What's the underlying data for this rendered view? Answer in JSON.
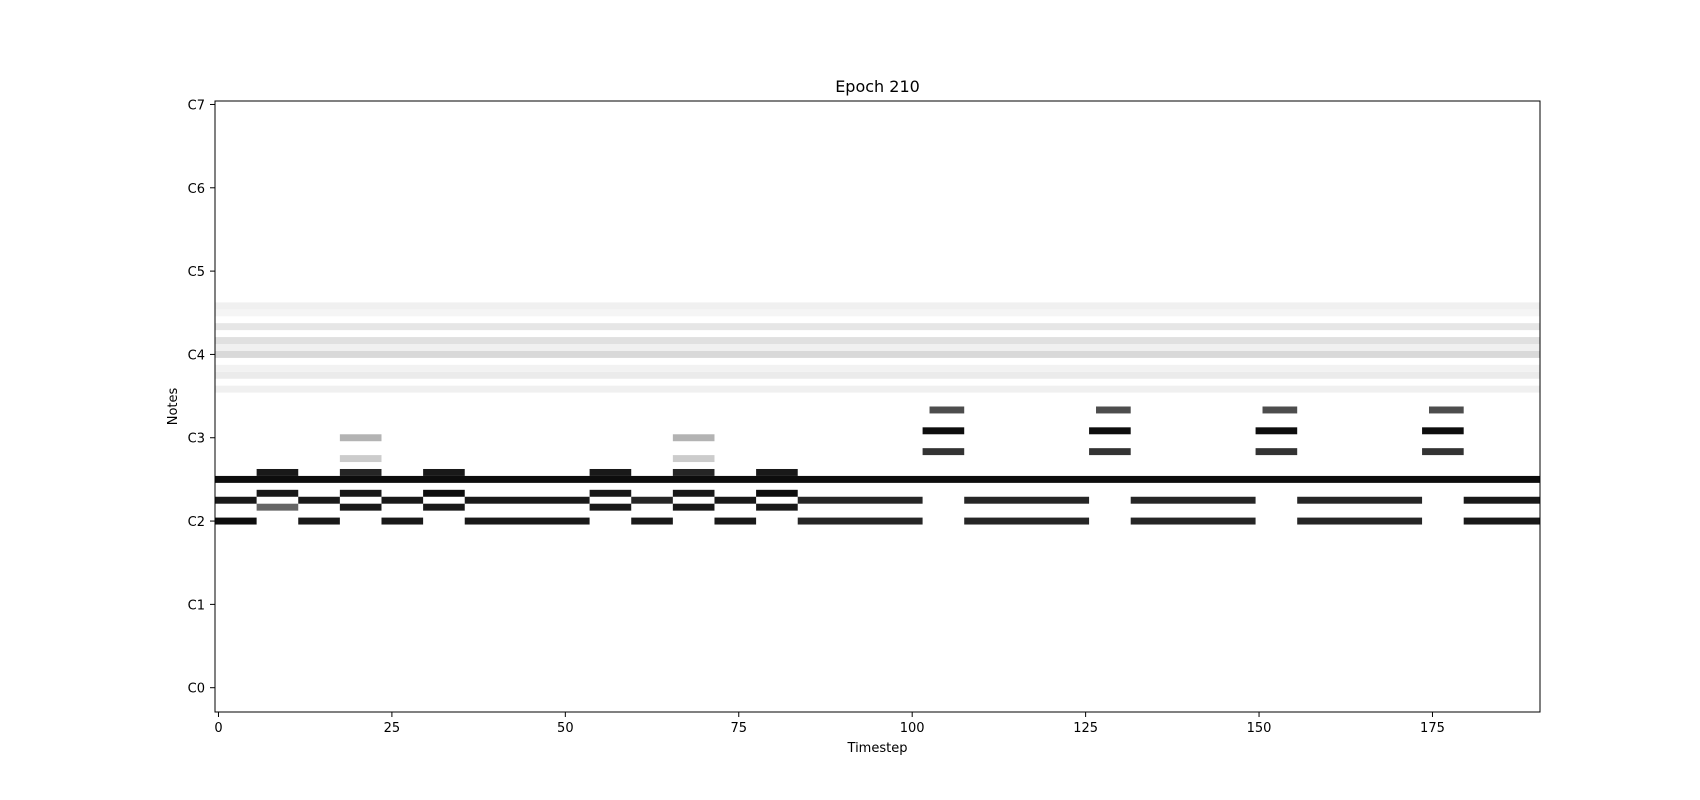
{
  "chart_data": {
    "type": "heatmap",
    "title": "Epoch 210",
    "xlabel": "Timestep",
    "ylabel": "Notes",
    "xlim": [
      -0.5,
      190.5
    ],
    "ylim": [
      -3.5,
      84.5
    ],
    "x_ticks": [
      0,
      25,
      50,
      75,
      100,
      125,
      150,
      175
    ],
    "y_ticks": [
      {
        "value": 0,
        "label": "C0"
      },
      {
        "value": 12,
        "label": "C1"
      },
      {
        "value": 24,
        "label": "C2"
      },
      {
        "value": 36,
        "label": "C3"
      },
      {
        "value": 48,
        "label": "C4"
      },
      {
        "value": 60,
        "label": "C5"
      },
      {
        "value": 72,
        "label": "C6"
      },
      {
        "value": 84,
        "label": "C7"
      }
    ],
    "colormap": "greys",
    "grid": false,
    "notes": [
      {
        "pitch": 24,
        "segments": [
          [
            0,
            5,
            0.95
          ],
          [
            12,
            17,
            0.9
          ],
          [
            24,
            29,
            0.9
          ],
          [
            36,
            53,
            0.9
          ],
          [
            60,
            65,
            0.9
          ],
          [
            72,
            77,
            0.9
          ],
          [
            84,
            101,
            0.85
          ],
          [
            108,
            125,
            0.85
          ],
          [
            132,
            149,
            0.85
          ],
          [
            156,
            173,
            0.85
          ],
          [
            180,
            190,
            0.9
          ]
        ]
      },
      {
        "pitch": 26,
        "segments": [
          [
            6,
            11,
            0.6
          ],
          [
            18,
            23,
            0.9
          ],
          [
            30,
            35,
            0.9
          ],
          [
            54,
            59,
            0.9
          ],
          [
            66,
            71,
            0.9
          ],
          [
            78,
            83,
            0.9
          ]
        ]
      },
      {
        "pitch": 27,
        "segments": [
          [
            0,
            5,
            0.9
          ],
          [
            12,
            17,
            0.9
          ],
          [
            24,
            29,
            0.9
          ],
          [
            36,
            53,
            0.9
          ],
          [
            60,
            65,
            0.85
          ],
          [
            72,
            77,
            0.9
          ],
          [
            84,
            101,
            0.85
          ],
          [
            108,
            125,
            0.85
          ],
          [
            132,
            149,
            0.85
          ],
          [
            156,
            173,
            0.85
          ],
          [
            180,
            190,
            0.9
          ]
        ]
      },
      {
        "pitch": 28,
        "segments": [
          [
            6,
            11,
            0.9
          ],
          [
            18,
            23,
            0.9
          ],
          [
            30,
            35,
            0.95
          ],
          [
            54,
            59,
            0.9
          ],
          [
            66,
            71,
            0.9
          ],
          [
            78,
            83,
            0.95
          ]
        ]
      },
      {
        "pitch": 30,
        "segments": [
          [
            0,
            190,
            0.95
          ]
        ]
      },
      {
        "pitch": 31,
        "segments": [
          [
            6,
            11,
            0.9
          ],
          [
            18,
            23,
            0.85
          ],
          [
            30,
            35,
            0.9
          ],
          [
            54,
            59,
            0.9
          ],
          [
            66,
            71,
            0.85
          ],
          [
            78,
            83,
            0.9
          ]
        ]
      },
      {
        "pitch": 34,
        "segments": [
          [
            102,
            107,
            0.8
          ],
          [
            126,
            131,
            0.8
          ],
          [
            150,
            155,
            0.8
          ],
          [
            174,
            179,
            0.8
          ]
        ]
      },
      {
        "pitch": 37,
        "segments": [
          [
            102,
            107,
            0.95
          ],
          [
            126,
            131,
            0.95
          ],
          [
            150,
            155,
            0.95
          ],
          [
            174,
            179,
            0.95
          ]
        ]
      },
      {
        "pitch": 40,
        "segments": [
          [
            103,
            107,
            0.7
          ],
          [
            127,
            131,
            0.7
          ],
          [
            151,
            155,
            0.7
          ],
          [
            175,
            179,
            0.7
          ]
        ]
      },
      {
        "pitch": 33,
        "segments": [
          [
            18,
            23,
            0.2
          ],
          [
            66,
            71,
            0.2
          ]
        ]
      },
      {
        "pitch": 36,
        "segments": [
          [
            18,
            23,
            0.3
          ],
          [
            66,
            71,
            0.3
          ]
        ]
      },
      {
        "pitch": 43,
        "segments": [
          [
            0,
            190,
            0.06
          ]
        ]
      },
      {
        "pitch": 45,
        "segments": [
          [
            0,
            190,
            0.08
          ]
        ]
      },
      {
        "pitch": 46,
        "segments": [
          [
            0,
            190,
            0.05
          ]
        ]
      },
      {
        "pitch": 48,
        "segments": [
          [
            0,
            190,
            0.15
          ]
        ]
      },
      {
        "pitch": 49,
        "segments": [
          [
            0,
            190,
            0.06
          ]
        ]
      },
      {
        "pitch": 50,
        "segments": [
          [
            0,
            190,
            0.12
          ]
        ]
      },
      {
        "pitch": 52,
        "segments": [
          [
            0,
            190,
            0.1
          ]
        ]
      },
      {
        "pitch": 54,
        "segments": [
          [
            0,
            190,
            0.04
          ]
        ]
      },
      {
        "pitch": 55,
        "segments": [
          [
            0,
            190,
            0.06
          ]
        ]
      }
    ]
  }
}
